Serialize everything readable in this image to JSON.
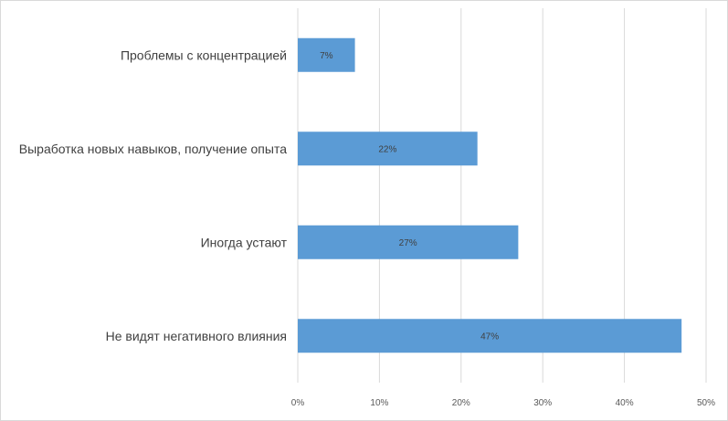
{
  "chart_data": {
    "type": "bar",
    "orientation": "horizontal",
    "categories": [
      "Проблемы с концентрацией",
      "Выработка новых навыков, получение опыта",
      "Иногда устают",
      "Не видят негативного влияния"
    ],
    "values": [
      7,
      22,
      27,
      47
    ],
    "data_labels": [
      "7%",
      "22%",
      "27%",
      "47%"
    ],
    "xlim": [
      0,
      50
    ],
    "x_ticks": [
      0,
      10,
      20,
      30,
      40,
      50
    ],
    "x_tick_labels": [
      "0%",
      "10%",
      "20%",
      "30%",
      "40%",
      "50%"
    ],
    "title": "",
    "xlabel": "",
    "ylabel": "",
    "grid": "vertical",
    "legend": "none",
    "colors": {
      "bar": "#5b9bd5",
      "gridline": "#d9d9d9",
      "text": "#404040"
    }
  }
}
